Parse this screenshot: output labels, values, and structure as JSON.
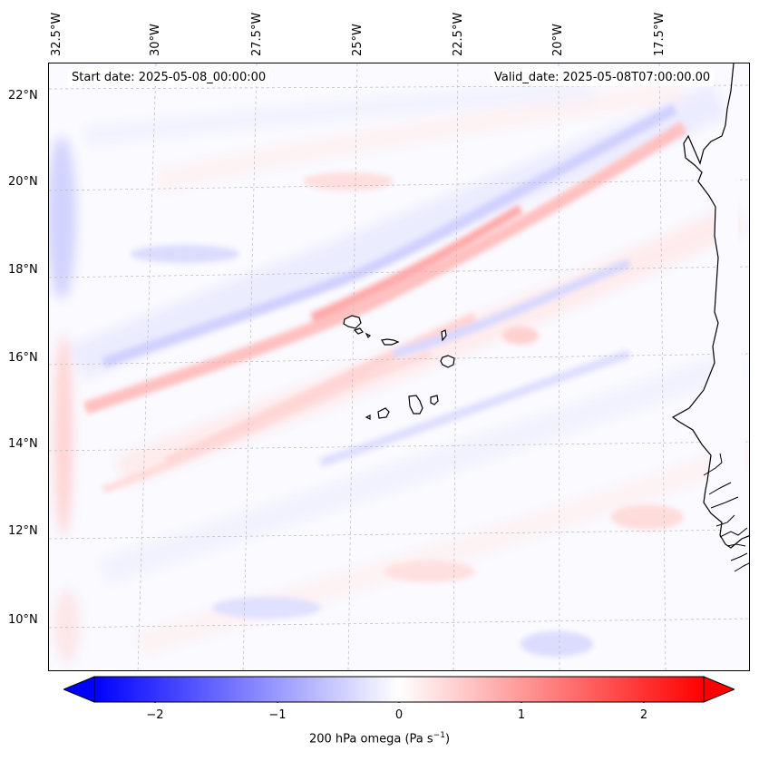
{
  "map": {
    "start_label": "Start date: 2025-05-08_00:00:00",
    "valid_label": "Valid_date: 2025-05-08T07:00:00.00",
    "longitude_labels": [
      "32.5°W",
      "30°W",
      "27.5°W",
      "25°W",
      "22.5°W",
      "20°W",
      "17.5°W"
    ],
    "latitude_labels": [
      "22°N",
      "20°N",
      "18°N",
      "16°N",
      "14°N",
      "12°N",
      "10°N"
    ],
    "land_color": "#ffffff",
    "positive_color": "#ff0000",
    "negative_color": "#0000ff"
  },
  "colorbar": {
    "ticks": [
      "−2",
      "−1",
      "0",
      "1",
      "2"
    ],
    "title": "200 hPa omega (Pa s",
    "title_unit_exp": "−1",
    "title_close": ")",
    "range": [
      -2.5,
      2.5
    ]
  }
}
